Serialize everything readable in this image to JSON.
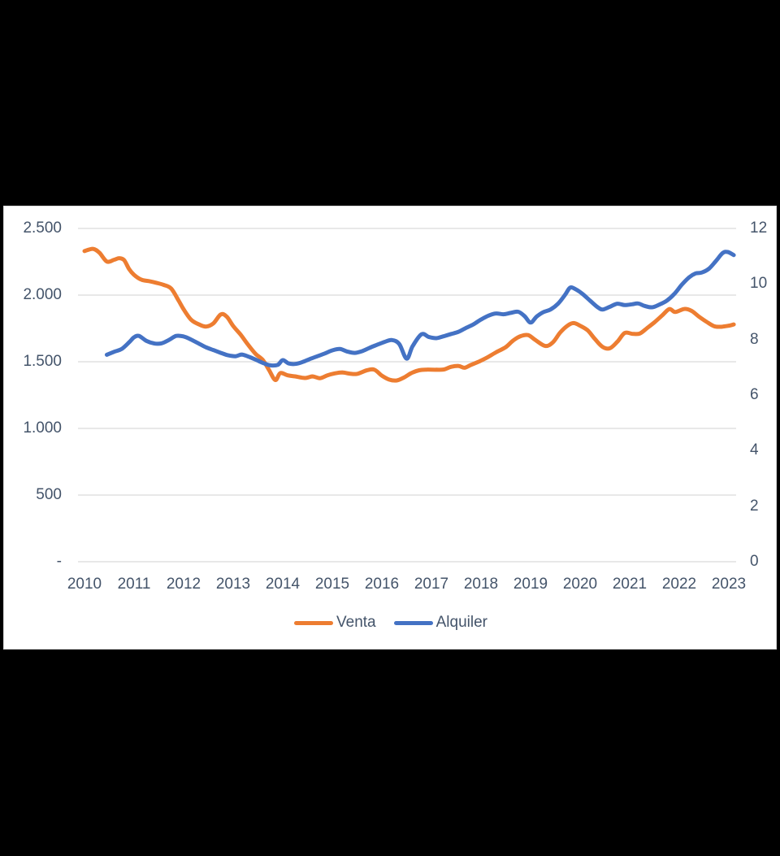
{
  "page": {
    "background": "#000000"
  },
  "chart": {
    "background": "#FFFFFF",
    "border_color": "#D9D9D9",
    "gridline_color": "#D9D9D9",
    "label_color": "#44546A",
    "line_width": 5
  },
  "chart_data": {
    "type": "line",
    "title": "",
    "grid": "horizontal",
    "legend_position": "bottom",
    "x_axis": {
      "tick_labels": [
        "2010",
        "2011",
        "2012",
        "2013",
        "2014",
        "2015",
        "2016",
        "2017",
        "2018",
        "2019",
        "2020",
        "2021",
        "2022",
        "2023"
      ]
    },
    "left_axis": {
      "tick_labels": [
        "2.500",
        "2.000",
        "1.500",
        "1.000",
        "500",
        "-"
      ],
      "min": 0,
      "max": 2500,
      "step": 500,
      "applies_to": "Venta"
    },
    "right_axis": {
      "tick_labels": [
        "12",
        "10",
        "8",
        "6",
        "4",
        "2",
        "0"
      ],
      "min": 0,
      "max": 12,
      "step": 2,
      "applies_to": "Alquiler"
    },
    "series": [
      {
        "name": "Venta",
        "color": "#ED7D31",
        "axis": "left",
        "x_years": [
          2010.0,
          2010.17,
          2010.3,
          2010.45,
          2010.6,
          2010.7,
          2010.8,
          2010.9,
          2011.0,
          2011.15,
          2011.3,
          2011.45,
          2011.6,
          2011.75,
          2011.9,
          2012.0,
          2012.15,
          2012.3,
          2012.45,
          2012.6,
          2012.75,
          2012.87,
          2013.0,
          2013.15,
          2013.3,
          2013.45,
          2013.6,
          2013.72,
          2013.85,
          2013.95,
          2014.1,
          2014.25,
          2014.45,
          2014.6,
          2014.75,
          2014.9,
          2015.05,
          2015.2,
          2015.35,
          2015.5,
          2015.7,
          2015.85,
          2016.0,
          2016.15,
          2016.3,
          2016.45,
          2016.6,
          2016.75,
          2016.9,
          2017.1,
          2017.25,
          2017.4,
          2017.55,
          2017.67,
          2017.8,
          2017.95,
          2018.1,
          2018.3,
          2018.5,
          2018.65,
          2018.8,
          2018.95,
          2019.1,
          2019.3,
          2019.45,
          2019.6,
          2019.75,
          2019.87,
          2020.0,
          2020.15,
          2020.3,
          2020.45,
          2020.6,
          2020.75,
          2020.9,
          2021.05,
          2021.2,
          2021.35,
          2021.5,
          2021.65,
          2021.8,
          2021.92,
          2022.1,
          2022.25,
          2022.4,
          2022.55,
          2022.7,
          2022.82,
          2022.92,
          2023.02,
          2023.1
        ],
        "values": [
          2330,
          2347,
          2318,
          2252,
          2265,
          2277,
          2262,
          2195,
          2152,
          2115,
          2105,
          2092,
          2076,
          2048,
          1958,
          1893,
          1815,
          1782,
          1764,
          1788,
          1855,
          1838,
          1768,
          1703,
          1628,
          1560,
          1512,
          1440,
          1363,
          1415,
          1398,
          1390,
          1378,
          1390,
          1377,
          1398,
          1413,
          1420,
          1411,
          1409,
          1436,
          1440,
          1396,
          1366,
          1360,
          1383,
          1416,
          1436,
          1441,
          1440,
          1442,
          1462,
          1468,
          1455,
          1477,
          1500,
          1527,
          1570,
          1610,
          1660,
          1692,
          1700,
          1662,
          1618,
          1646,
          1720,
          1772,
          1790,
          1770,
          1736,
          1670,
          1612,
          1601,
          1650,
          1716,
          1710,
          1711,
          1752,
          1796,
          1846,
          1895,
          1873,
          1896,
          1881,
          1838,
          1800,
          1767,
          1762,
          1766,
          1772,
          1780
        ]
      },
      {
        "name": "Alquiler",
        "color": "#4472C4",
        "axis": "right",
        "x_years": [
          2010.45,
          2010.6,
          2010.75,
          2010.9,
          2011.0,
          2011.1,
          2011.25,
          2011.4,
          2011.55,
          2011.7,
          2011.85,
          2012.0,
          2012.15,
          2012.3,
          2012.45,
          2012.6,
          2012.75,
          2012.9,
          2013.05,
          2013.17,
          2013.3,
          2013.45,
          2013.6,
          2013.75,
          2013.9,
          2014.0,
          2014.12,
          2014.25,
          2014.4,
          2014.55,
          2014.7,
          2014.85,
          2015.0,
          2015.15,
          2015.3,
          2015.45,
          2015.6,
          2015.75,
          2015.9,
          2016.05,
          2016.2,
          2016.35,
          2016.5,
          2016.62,
          2016.8,
          2016.95,
          2017.1,
          2017.25,
          2017.4,
          2017.55,
          2017.7,
          2017.85,
          2018.0,
          2018.15,
          2018.3,
          2018.45,
          2018.6,
          2018.75,
          2018.88,
          2019.0,
          2019.12,
          2019.25,
          2019.4,
          2019.55,
          2019.7,
          2019.8,
          2019.92,
          2020.05,
          2020.2,
          2020.35,
          2020.45,
          2020.6,
          2020.75,
          2020.9,
          2021.05,
          2021.17,
          2021.3,
          2021.45,
          2021.6,
          2021.75,
          2021.9,
          2022.05,
          2022.2,
          2022.33,
          2022.45,
          2022.6,
          2022.75,
          2022.88,
          2022.98,
          2023.1
        ],
        "values": [
          7.45,
          7.56,
          7.66,
          7.9,
          8.08,
          8.13,
          7.95,
          7.86,
          7.86,
          7.98,
          8.13,
          8.11,
          8.0,
          7.86,
          7.72,
          7.62,
          7.52,
          7.43,
          7.4,
          7.46,
          7.39,
          7.28,
          7.16,
          7.07,
          7.09,
          7.26,
          7.14,
          7.12,
          7.19,
          7.3,
          7.4,
          7.5,
          7.61,
          7.66,
          7.57,
          7.52,
          7.58,
          7.7,
          7.81,
          7.91,
          7.98,
          7.84,
          7.31,
          7.76,
          8.19,
          8.09,
          8.05,
          8.12,
          8.2,
          8.28,
          8.42,
          8.55,
          8.72,
          8.86,
          8.94,
          8.91,
          8.96,
          9.0,
          8.84,
          8.61,
          8.82,
          8.98,
          9.08,
          9.28,
          9.62,
          9.87,
          9.8,
          9.64,
          9.4,
          9.17,
          9.08,
          9.18,
          9.29,
          9.24,
          9.27,
          9.3,
          9.21,
          9.16,
          9.26,
          9.4,
          9.64,
          9.97,
          10.24,
          10.38,
          10.41,
          10.55,
          10.85,
          11.12,
          11.15,
          11.04
        ]
      }
    ]
  }
}
